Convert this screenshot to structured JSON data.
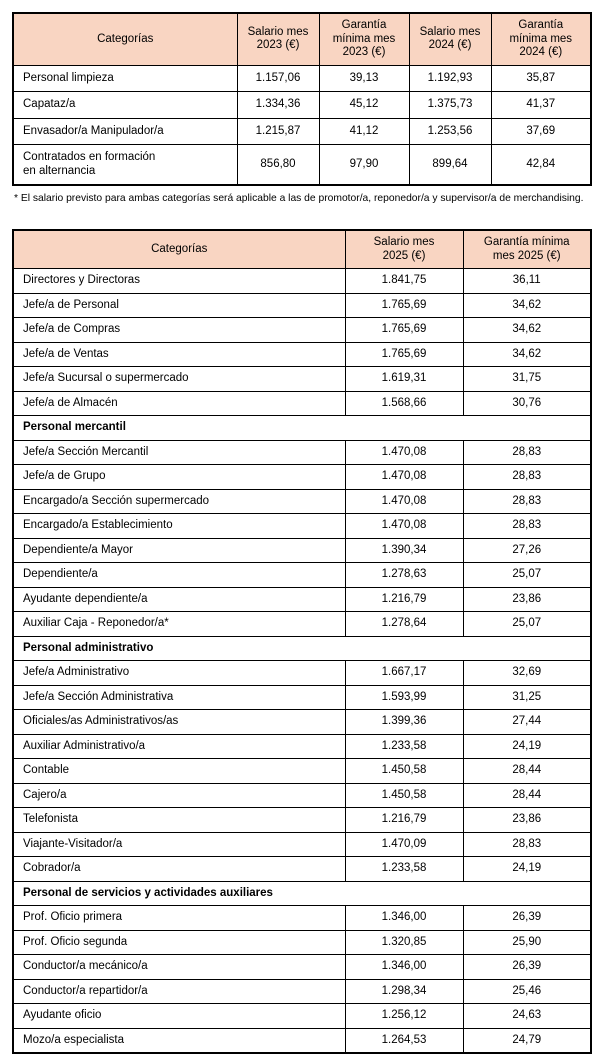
{
  "colors": {
    "header_bg": "#f9d5c2",
    "border": "#000000",
    "text": "#000000"
  },
  "footnote": "* El salario previsto para ambas categorías será aplicable a las de promotor/a, reponedor/a y supervisor/a de merchandising.",
  "table1": {
    "columns": [
      "Categorías",
      "Salario mes\n2023 (€)",
      "Garantía\nmínima mes\n2023 (€)",
      "Salario mes\n2024 (€)",
      "Garantía\nmínima mes\n2024 (€)"
    ],
    "rows": [
      {
        "type": "data",
        "category": "Personal limpieza",
        "values": [
          "1.157,06",
          "39,13",
          "1.192,93",
          "35,87"
        ]
      },
      {
        "type": "data",
        "category": "Capataz/a",
        "values": [
          "1.334,36",
          "45,12",
          "1.375,73",
          "41,37"
        ]
      },
      {
        "type": "data",
        "category": "Envasador/a Manipulador/a",
        "values": [
          "1.215,87",
          "41,12",
          "1.253,56",
          "37,69"
        ]
      },
      {
        "type": "data",
        "category": "Contratados en formación\nen alternancia",
        "values": [
          "856,80",
          "97,90",
          "899,64",
          "42,84"
        ]
      }
    ]
  },
  "table2": {
    "columns": [
      "Categorías",
      "Salario mes\n2025 (€)",
      "Garantía mínima\nmes 2025 (€)"
    ],
    "rows": [
      {
        "type": "data",
        "category": "Directores y Directoras",
        "values": [
          "1.841,75",
          "36,11"
        ]
      },
      {
        "type": "data",
        "category": "Jefe/a de Personal",
        "values": [
          "1.765,69",
          "34,62"
        ]
      },
      {
        "type": "data",
        "category": "Jefe/a de Compras",
        "values": [
          "1.765,69",
          "34,62"
        ]
      },
      {
        "type": "data",
        "category": "Jefe/a de Ventas",
        "values": [
          "1.765,69",
          "34,62"
        ]
      },
      {
        "type": "data",
        "category": "Jefe/a Sucursal o supermercado",
        "values": [
          "1.619,31",
          "31,75"
        ]
      },
      {
        "type": "data",
        "category": "Jefe/a de Almacén",
        "values": [
          "1.568,66",
          "30,76"
        ]
      },
      {
        "type": "section",
        "label": "Personal mercantil"
      },
      {
        "type": "data",
        "category": "Jefe/a Sección Mercantil",
        "values": [
          "1.470,08",
          "28,83"
        ]
      },
      {
        "type": "data",
        "category": "Jefe/a de Grupo",
        "values": [
          "1.470,08",
          "28,83"
        ]
      },
      {
        "type": "data",
        "category": "Encargado/a Sección supermercado",
        "values": [
          "1.470,08",
          "28,83"
        ]
      },
      {
        "type": "data",
        "category": "Encargado/a Establecimiento",
        "values": [
          "1.470,08",
          "28,83"
        ]
      },
      {
        "type": "data",
        "category": "Dependiente/a Mayor",
        "values": [
          "1.390,34",
          "27,26"
        ]
      },
      {
        "type": "data",
        "category": "Dependiente/a",
        "values": [
          "1.278,63",
          "25,07"
        ]
      },
      {
        "type": "data",
        "category": "Ayudante dependiente/a",
        "values": [
          "1.216,79",
          "23,86"
        ]
      },
      {
        "type": "data",
        "category": "Auxiliar Caja - Reponedor/a*",
        "values": [
          "1.278,64",
          "25,07"
        ]
      },
      {
        "type": "section",
        "label": "Personal administrativo"
      },
      {
        "type": "data",
        "category": "Jefe/a Administrativo",
        "values": [
          "1.667,17",
          "32,69"
        ]
      },
      {
        "type": "data",
        "category": "Jefe/a Sección Administrativa",
        "values": [
          "1.593,99",
          "31,25"
        ]
      },
      {
        "type": "data",
        "category": "Oficiales/as Administrativos/as",
        "values": [
          "1.399,36",
          "27,44"
        ]
      },
      {
        "type": "data",
        "category": "Auxiliar Administrativo/a",
        "values": [
          "1.233,58",
          "24,19"
        ]
      },
      {
        "type": "data",
        "category": "Contable",
        "values": [
          "1.450,58",
          "28,44"
        ]
      },
      {
        "type": "data",
        "category": "Cajero/a",
        "values": [
          "1.450,58",
          "28,44"
        ]
      },
      {
        "type": "data",
        "category": "Telefonista",
        "values": [
          "1.216,79",
          "23,86"
        ]
      },
      {
        "type": "data",
        "category": "Viajante-Visitador/a",
        "values": [
          "1.470,09",
          "28,83"
        ]
      },
      {
        "type": "data",
        "category": "Cobrador/a",
        "values": [
          "1.233,58",
          "24,19"
        ]
      },
      {
        "type": "section",
        "label": "Personal de servicios y actividades auxiliares"
      },
      {
        "type": "data",
        "category": "Prof. Oficio primera",
        "values": [
          "1.346,00",
          "26,39"
        ]
      },
      {
        "type": "data",
        "category": "Prof. Oficio segunda",
        "values": [
          "1.320,85",
          "25,90"
        ]
      },
      {
        "type": "data",
        "category": "Conductor/a mecánico/a",
        "values": [
          "1.346,00",
          "26,39"
        ]
      },
      {
        "type": "data",
        "category": "Conductor/a repartidor/a",
        "values": [
          "1.298,34",
          "25,46"
        ]
      },
      {
        "type": "data",
        "category": "Ayudante oficio",
        "values": [
          "1.256,12",
          "24,63"
        ]
      },
      {
        "type": "data",
        "category": "Mozo/a especialista",
        "values": [
          "1.264,53",
          "24,79"
        ]
      }
    ]
  }
}
